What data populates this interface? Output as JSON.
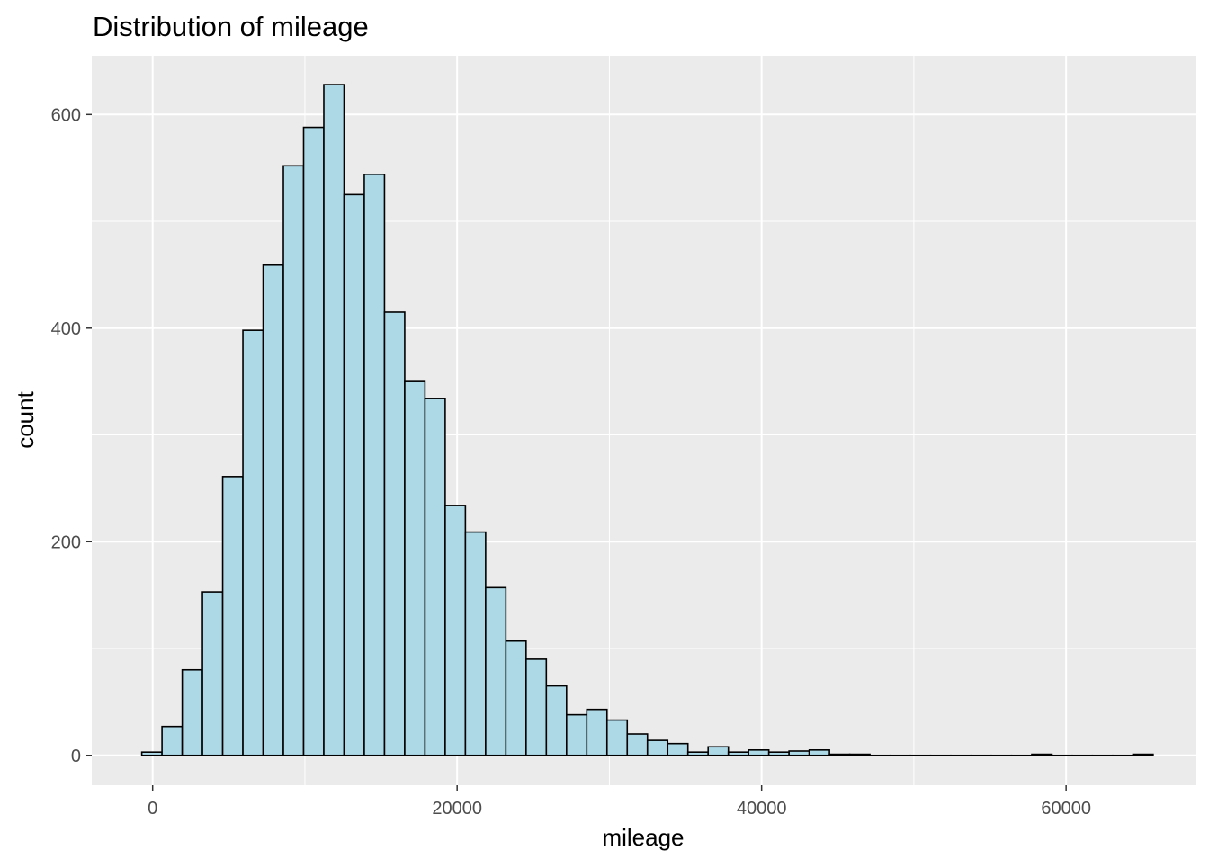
{
  "chart_data": {
    "type": "bar",
    "title": "Distribution of mileage",
    "xlabel": "mileage",
    "ylabel": "count",
    "bins": 50,
    "bin_start": -714,
    "bin_width": 1328.6,
    "values": [
      3,
      27,
      80,
      153,
      261,
      398,
      459,
      552,
      588,
      628,
      525,
      544,
      415,
      350,
      334,
      234,
      209,
      157,
      107,
      90,
      65,
      38,
      43,
      33,
      20,
      14,
      11,
      3,
      8,
      3,
      5,
      3,
      4,
      5,
      1,
      1,
      0,
      0,
      0,
      0,
      0,
      0,
      0,
      0,
      1,
      0,
      0,
      0,
      0,
      1
    ],
    "xlim": [
      -4000,
      68500
    ],
    "ylim": [
      -28,
      655
    ],
    "xticks": [
      0,
      20000,
      40000,
      60000
    ],
    "xtick_labels": [
      "0",
      "20000",
      "40000",
      "60000"
    ],
    "yticks": [
      0,
      200,
      400,
      600
    ],
    "ytick_labels": [
      "0",
      "200",
      "400",
      "600"
    ],
    "grid": true,
    "fill_color": "#ADD8E6",
    "edge_color": "#000000",
    "panel_color": "#EBEBEB"
  }
}
